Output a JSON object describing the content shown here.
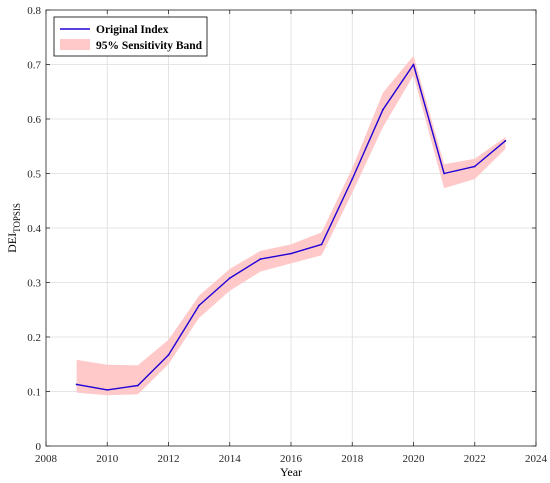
{
  "chart_data": {
    "type": "line",
    "xlabel": "Year",
    "ylabel": "DEI",
    "ylabel_subscript": "TOPSIS",
    "xlim": [
      2008,
      2024
    ],
    "ylim": [
      0,
      0.8
    ],
    "xticks": [
      2008,
      2010,
      2012,
      2014,
      2016,
      2018,
      2020,
      2022,
      2024
    ],
    "yticks": [
      0,
      0.1,
      0.2,
      0.3,
      0.4,
      0.5,
      0.6,
      0.7,
      0.8
    ],
    "xtick_labels": [
      "2008",
      "2010",
      "2012",
      "2014",
      "2016",
      "2018",
      "2020",
      "2022",
      "2024"
    ],
    "ytick_labels": [
      "0",
      "0.1",
      "0.2",
      "0.3",
      "0.4",
      "0.5",
      "0.6",
      "0.7",
      "0.8"
    ],
    "grid": true,
    "legend_position": "top-left",
    "x": [
      2009,
      2010,
      2011,
      2012,
      2013,
      2014,
      2015,
      2016,
      2017,
      2018,
      2019,
      2020,
      2021,
      2022,
      2023
    ],
    "series": [
      {
        "name": "Original Index",
        "kind": "line",
        "color": "#1f00d6",
        "values": [
          0.113,
          0.103,
          0.111,
          0.167,
          0.258,
          0.308,
          0.343,
          0.353,
          0.37,
          0.49,
          0.617,
          0.7,
          0.5,
          0.513,
          0.56
        ]
      },
      {
        "name": "95% Sensitivity Band",
        "kind": "band",
        "color": "#ffc9c9",
        "lower": [
          0.098,
          0.093,
          0.095,
          0.15,
          0.235,
          0.285,
          0.32,
          0.335,
          0.35,
          0.465,
          0.585,
          0.68,
          0.473,
          0.49,
          0.545
        ],
        "upper": [
          0.158,
          0.149,
          0.148,
          0.195,
          0.276,
          0.325,
          0.358,
          0.37,
          0.392,
          0.51,
          0.648,
          0.716,
          0.517,
          0.527,
          0.567
        ]
      }
    ]
  }
}
